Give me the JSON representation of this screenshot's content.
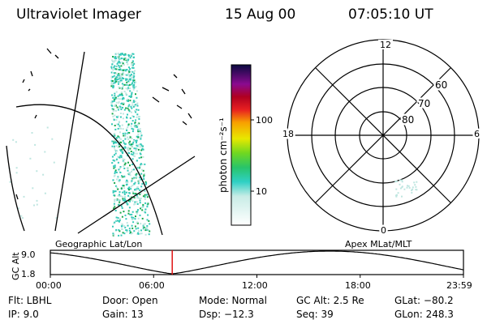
{
  "header": {
    "title": "Ultraviolet Imager",
    "date": "15 Aug 00",
    "time": "07:05:10 UT"
  },
  "colorbar": {
    "unit_label": "photon cm⁻²s⁻¹",
    "ticks": [
      "100",
      "10"
    ]
  },
  "polar": {
    "lat_labels": [
      "60",
      "70",
      "80"
    ],
    "mlt_labels": [
      "12",
      "18",
      "6",
      "0"
    ]
  },
  "orbit": {
    "left_title": "Geographic Lat/Lon",
    "right_title": "Apex MLat/MLT",
    "axis_label": "GC Alt",
    "y_ticks": [
      "9.0",
      "1.8"
    ],
    "x_ticks": [
      "00:00",
      "06:00",
      "12:00",
      "18:00",
      "23:59"
    ],
    "marker_time": "07:05"
  },
  "info": {
    "flt": "Flt:  LBHL",
    "ip": "IP:  9.0",
    "door": "Door:  Open",
    "gain": "Gain:  13",
    "mode": "Mode:  Normal",
    "dsp": "Dsp:    −12.3",
    "gcalt": "GC Alt:  2.5 Re",
    "seq": "Seq:  39",
    "glat": "GLat:  −80.2",
    "glon": "GLon:  248.3"
  },
  "colors": {
    "speckle_main": "#33c9b8",
    "speckle_dim": "#bfe6e0",
    "speckle_bright": "#18a84a",
    "marker": "#e01515"
  }
}
